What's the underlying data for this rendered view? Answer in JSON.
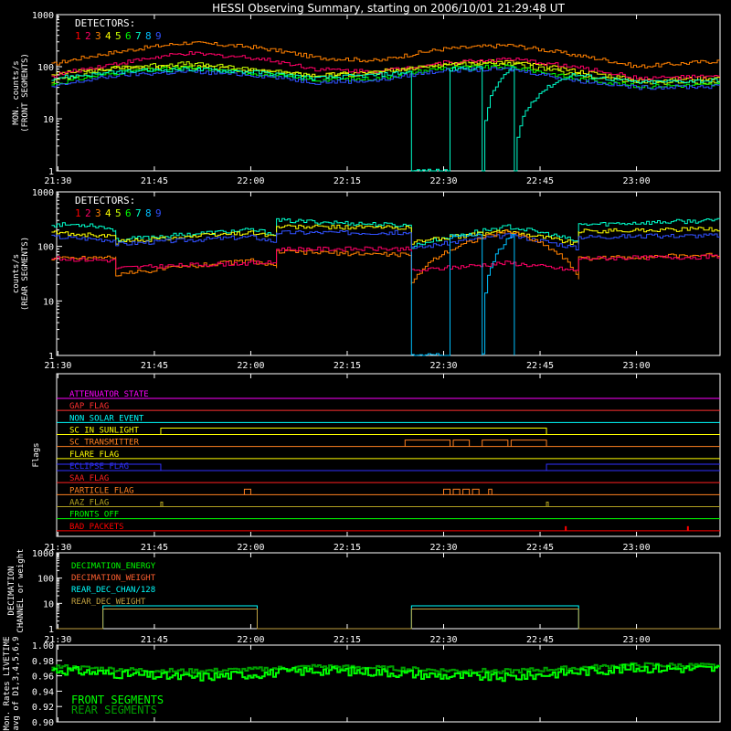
{
  "title": "HESSI Observing Summary, starting on 2006/10/01 21:29:48 UT",
  "time_ticks": [
    "21:30",
    "21:45",
    "22:00",
    "22:15",
    "22:30",
    "22:45",
    "23:00"
  ],
  "detectors": {
    "title": "DETECTORS:",
    "numbers": [
      "1",
      "2",
      "3",
      "4",
      "5",
      "6",
      "7",
      "8",
      "9"
    ],
    "colors": [
      "#ff0000",
      "#ff0066",
      "#ff8000",
      "#ffff00",
      "#c8ff00",
      "#00ff00",
      "#00ffcc",
      "#00c0ff",
      "#3050ff"
    ]
  },
  "chart_data": [
    {
      "type": "line",
      "ylabel_lines": [
        "MON. counts/s",
        "(FRONT SEGMENTS)"
      ],
      "yscale": "log",
      "ylim": [
        1,
        1000
      ],
      "y_ticks": [
        "1",
        "10",
        "100",
        "1000"
      ],
      "xlim": [
        "21:29:48",
        "23:13"
      ],
      "series": [
        {
          "color": "#ffff00",
          "times": [
            "21:29",
            "21:40",
            "21:50",
            "22:00",
            "22:10",
            "22:20",
            "22:30",
            "22:40",
            "22:50",
            "23:00",
            "23:13"
          ],
          "values": [
            72,
            95,
            100,
            85,
            68,
            80,
            120,
            125,
            85,
            55,
            62
          ]
        },
        {
          "color": "#ff0066",
          "times": [
            "21:29",
            "21:40",
            "21:50",
            "22:00",
            "22:10",
            "22:20",
            "22:30",
            "22:40",
            "22:50",
            "23:00",
            "23:13"
          ],
          "values": [
            65,
            120,
            180,
            150,
            90,
            80,
            120,
            140,
            100,
            60,
            65
          ]
        },
        {
          "color": "#ff8000",
          "times": [
            "21:29",
            "21:40",
            "21:50",
            "22:00",
            "22:10",
            "22:20",
            "22:30",
            "22:40",
            "22:50",
            "23:00",
            "23:13"
          ],
          "values": [
            110,
            200,
            290,
            240,
            150,
            130,
            220,
            260,
            170,
            100,
            130
          ]
        },
        {
          "color": "#c8ff00",
          "times": [
            "21:29",
            "21:40",
            "21:50",
            "22:00",
            "22:10",
            "22:20",
            "22:30",
            "22:40",
            "22:50",
            "23:00",
            "23:13"
          ],
          "values": [
            52,
            100,
            115,
            90,
            65,
            75,
            110,
            115,
            70,
            50,
            50
          ]
        },
        {
          "color": "#00ff00",
          "times": [
            "21:29",
            "21:40",
            "21:50",
            "22:00",
            "22:10",
            "22:20",
            "22:30",
            "22:40",
            "22:50",
            "23:00",
            "23:13"
          ],
          "values": [
            45,
            80,
            95,
            75,
            55,
            60,
            95,
            100,
            60,
            42,
            45
          ]
        },
        {
          "color": "#3050ff",
          "times": [
            "21:29",
            "21:40",
            "21:50",
            "22:00",
            "22:10",
            "22:20",
            "22:30",
            "22:40",
            "22:50",
            "23:00",
            "23:13"
          ],
          "values": [
            40,
            70,
            80,
            70,
            50,
            55,
            85,
            90,
            55,
            40,
            42
          ]
        },
        {
          "color": "#00ffcc",
          "times": [
            "21:29",
            "21:40",
            "21:50",
            "22:00",
            "22:10",
            "22:20",
            "22:25",
            "22:25",
            "22:31",
            "22:31",
            "22:36",
            "22:36",
            "22:41",
            "22:41",
            "22:50",
            "23:00",
            "23:13"
          ],
          "values": [
            60,
            80,
            90,
            80,
            60,
            70,
            80,
            1,
            1,
            90,
            95,
            1,
            100,
            1,
            70,
            50,
            55
          ]
        }
      ]
    },
    {
      "type": "line",
      "ylabel_lines": [
        "counts/s",
        "(REAR SEGMENTS)"
      ],
      "yscale": "log",
      "ylim": [
        1,
        1000
      ],
      "y_ticks": [
        "1",
        "10",
        "100",
        "1000"
      ],
      "xlim": [
        "21:29:48",
        "23:13"
      ],
      "series": [
        {
          "color": "#00ffcc",
          "times": [
            "21:29",
            "21:35",
            "21:39",
            "21:39",
            "22:00",
            "22:04",
            "22:04",
            "22:25",
            "22:25",
            "22:40",
            "22:51",
            "22:51",
            "23:13"
          ],
          "values": [
            250,
            250,
            200,
            130,
            200,
            170,
            300,
            240,
            100,
            230,
            120,
            250,
            300
          ]
        },
        {
          "color": "#ffff00",
          "times": [
            "21:29",
            "21:39",
            "21:39",
            "22:00",
            "22:04",
            "22:04",
            "22:25",
            "22:25",
            "22:40",
            "22:51",
            "22:51",
            "23:13"
          ],
          "values": [
            180,
            150,
            120,
            180,
            150,
            230,
            220,
            120,
            190,
            110,
            190,
            210
          ]
        },
        {
          "color": "#3050ff",
          "times": [
            "21:29",
            "21:39",
            "21:39",
            "22:00",
            "22:04",
            "22:04",
            "22:25",
            "22:25",
            "22:40",
            "22:51",
            "22:51",
            "23:13"
          ],
          "values": [
            150,
            130,
            110,
            150,
            120,
            180,
            180,
            90,
            160,
            90,
            150,
            160
          ]
        },
        {
          "color": "#ff8000",
          "times": [
            "21:29",
            "21:39",
            "21:39",
            "22:00",
            "22:04",
            "22:04",
            "22:25",
            "22:25",
            "22:40",
            "22:51",
            "22:51",
            "23:13"
          ],
          "values": [
            60,
            65,
            30,
            55,
            40,
            80,
            70,
            20,
            190,
            25,
            60,
            70
          ]
        },
        {
          "color": "#ff0066",
          "times": [
            "21:29",
            "21:39",
            "21:39",
            "22:00",
            "22:04",
            "22:04",
            "22:25",
            "22:25",
            "22:40",
            "22:51",
            "22:51",
            "23:13"
          ],
          "values": [
            60,
            55,
            40,
            50,
            50,
            90,
            90,
            35,
            50,
            35,
            60,
            65
          ]
        },
        {
          "color": "#00c0ff",
          "times": [
            "22:25",
            "22:25",
            "22:31",
            "22:31",
            "22:36",
            "22:36",
            "22:41",
            "22:41"
          ],
          "values": [
            80,
            1,
            1,
            150,
            160,
            1,
            170,
            1
          ]
        }
      ]
    }
  ],
  "flags": {
    "ylabel": "Flags",
    "items": [
      {
        "label": "ATTENUATOR_STATE",
        "color": "#ff00ff"
      },
      {
        "label": "GAP_FLAG",
        "color": "#ff3030"
      },
      {
        "label": "NON_SOLAR_EVENT",
        "color": "#00ffff"
      },
      {
        "label": "SC_IN_SUNLIGHT",
        "color": "#ffff00"
      },
      {
        "label": "SC_TRANSMITTER",
        "color": "#ff8020"
      },
      {
        "label": "FLARE_FLAG",
        "color": "#ffff00"
      },
      {
        "label": "ECLIPSE_FLAG",
        "color": "#3030ff"
      },
      {
        "label": "SAA_FLAG",
        "color": "#ff2020"
      },
      {
        "label": "PARTICLE_FLAG",
        "color": "#ff8020"
      },
      {
        "label": "AAZ_FLAG",
        "color": "#b0a020"
      },
      {
        "label": "FRONTS_OFF",
        "color": "#00ff00"
      },
      {
        "label": "BAD_PACKETS",
        "color": "#ff0000"
      }
    ]
  },
  "decimation": {
    "ylabel_lines": [
      "DECIMATION",
      "CHANNEL or weight"
    ],
    "y_ticks": [
      "1",
      "10",
      "100",
      "1000"
    ],
    "legend": [
      {
        "label": "DECIMATION_ENERGY",
        "color": "#00ff00"
      },
      {
        "label": "DECIMATION_WEIGHT",
        "color": "#ff6030"
      },
      {
        "label": "REAR_DEC_CHAN/128",
        "color": "#00ffff"
      },
      {
        "label": "REAR_DEC_WEIGHT",
        "color": "#c0a040"
      }
    ],
    "rear_dec_chan_128": {
      "color": "#00ffff",
      "intervals": [
        [
          "21:37",
          "22:01",
          8
        ],
        [
          "22:25",
          "22:51",
          8
        ]
      ]
    },
    "rear_dec_weight": {
      "color": "#c0a040",
      "intervals": [
        [
          "21:37",
          "22:01",
          6
        ],
        [
          "22:25",
          "22:51",
          6
        ]
      ]
    }
  },
  "livetime": {
    "ylabel_lines": [
      "Mon. Rates LIVETIME",
      "avg of D1,3,4,5,6,9"
    ],
    "y_ticks": [
      "0.90",
      "0.92",
      "0.94",
      "0.96",
      "0.98",
      "1.00"
    ],
    "legend": [
      {
        "label": "FRONT SEGMENTS",
        "color": "#00ff00"
      },
      {
        "label": "REAR SEGMENTS",
        "color": "#00a000"
      }
    ],
    "front": {
      "color": "#00ff00",
      "times": [
        "21:29",
        "21:40",
        "21:50",
        "22:00",
        "22:10",
        "22:20",
        "22:30",
        "22:40",
        "22:50",
        "23:00",
        "23:13"
      ],
      "values": [
        0.968,
        0.962,
        0.958,
        0.962,
        0.967,
        0.965,
        0.96,
        0.958,
        0.965,
        0.97,
        0.969
      ]
    },
    "rear": {
      "color": "#00a000",
      "times": [
        "21:29",
        "21:40",
        "21:50",
        "22:00",
        "22:10",
        "22:20",
        "22:30",
        "22:40",
        "22:50",
        "23:00",
        "23:13"
      ],
      "values": [
        0.972,
        0.968,
        0.966,
        0.968,
        0.972,
        0.97,
        0.967,
        0.966,
        0.97,
        0.974,
        0.973
      ]
    }
  }
}
